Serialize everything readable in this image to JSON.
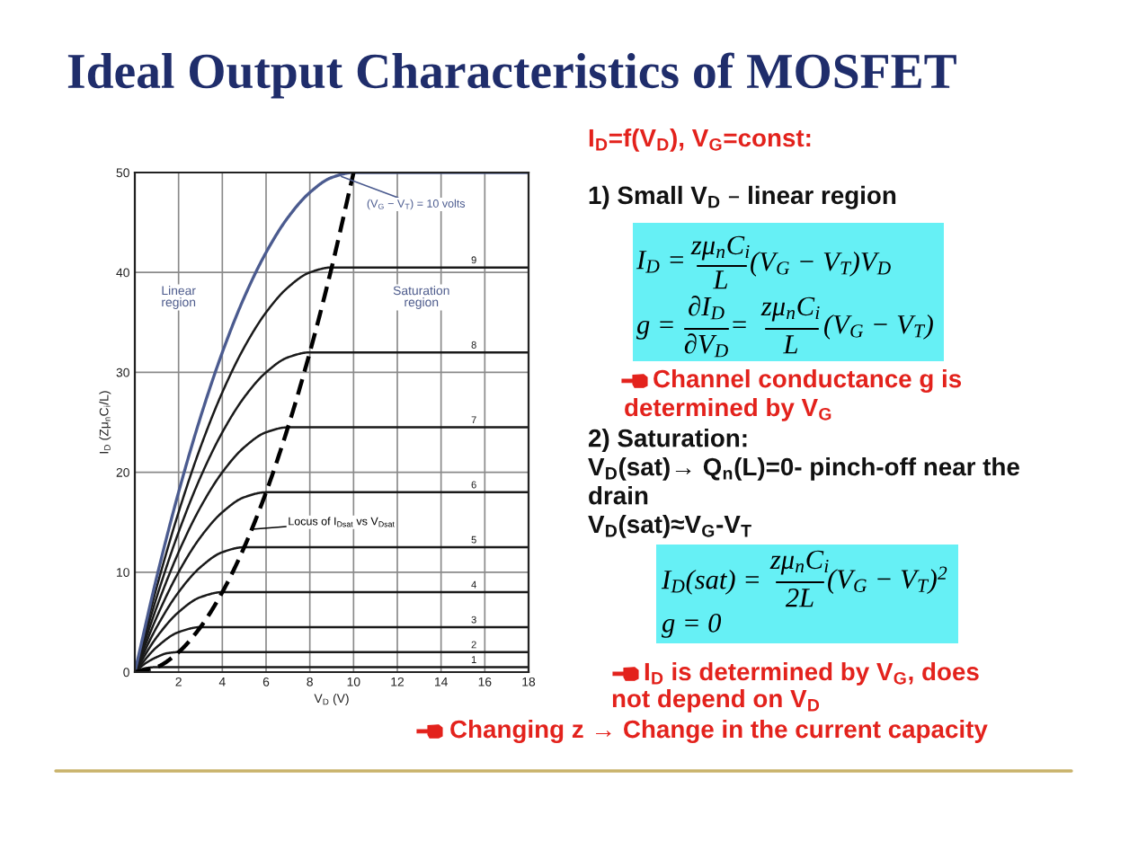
{
  "chart_data": {
    "type": "line",
    "title": "Ideal Output Characteristics of MOSFET",
    "xlabel": "V$_{D}$ (V)",
    "ylabel": "I$_{D}$ (Zμ$_{n}$C$_{i}$/L)",
    "xlim": [
      0,
      18
    ],
    "ylim": [
      0,
      50
    ],
    "xticks": [
      2,
      4,
      6,
      8,
      10,
      12,
      14,
      16,
      18
    ],
    "yticks": [
      0,
      10,
      20,
      30,
      40,
      50
    ],
    "grid": true,
    "series": [
      {
        "name": "1",
        "color": "#1a1a1a",
        "x": [
          0,
          0.5,
          1,
          18
        ],
        "values": [
          0,
          0.4,
          0.5,
          0.5
        ]
      },
      {
        "name": "2",
        "color": "#1a1a1a",
        "x": [
          0,
          0.5,
          1,
          1.5,
          2,
          18
        ],
        "values": [
          0,
          0.9,
          1.5,
          1.9,
          2,
          2
        ]
      },
      {
        "name": "3",
        "color": "#1a1a1a",
        "x": [
          0,
          1,
          2,
          3,
          18
        ],
        "values": [
          0,
          2.5,
          4,
          4.5,
          4.5
        ]
      },
      {
        "name": "4",
        "color": "#1a1a1a",
        "x": [
          0,
          1,
          2,
          3,
          4,
          18
        ],
        "values": [
          0,
          3.5,
          6,
          7.5,
          8,
          8
        ]
      },
      {
        "name": "5",
        "color": "#1a1a1a",
        "x": [
          0,
          1,
          2,
          3,
          4,
          5,
          18
        ],
        "values": [
          0,
          4.5,
          8,
          10.5,
          12,
          12.5,
          12.5
        ]
      },
      {
        "name": "6",
        "color": "#1a1a1a",
        "x": [
          0,
          1,
          2,
          3,
          4,
          5,
          6,
          18
        ],
        "values": [
          0,
          5.5,
          10,
          13.5,
          16,
          17.5,
          18,
          18
        ]
      },
      {
        "name": "7",
        "color": "#1a1a1a",
        "x": [
          0,
          1,
          2,
          3,
          4,
          5,
          6,
          7,
          18
        ],
        "values": [
          0,
          6.5,
          12,
          16.5,
          20,
          22.5,
          24,
          24.5,
          24.5
        ]
      },
      {
        "name": "8",
        "color": "#1a1a1a",
        "x": [
          0,
          1,
          2,
          3,
          4,
          5,
          6,
          7,
          8,
          18
        ],
        "values": [
          0,
          7.5,
          14,
          19.5,
          24,
          27.5,
          30,
          31.5,
          32,
          32
        ]
      },
      {
        "name": "9",
        "color": "#1a1a1a",
        "x": [
          0,
          1,
          2,
          3,
          4,
          5,
          6,
          7,
          8,
          9,
          18
        ],
        "values": [
          0,
          8.5,
          16,
          22.5,
          28,
          32.5,
          36,
          38.5,
          40,
          40.5,
          40.5
        ]
      },
      {
        "name": "(V$_{G}$ − V$_{T}$) = 10 volts",
        "color": "#4b5b8f",
        "x": [
          0,
          1,
          2,
          3,
          4,
          5,
          6,
          7,
          8,
          9,
          10,
          18
        ],
        "values": [
          0,
          9.5,
          18,
          25.5,
          32,
          37.5,
          42,
          45.5,
          48,
          49.5,
          50,
          50
        ]
      },
      {
        "name": "Locus of I$_{Dsat}$ vs V$_{Dsat}$",
        "color": "#000000",
        "line_style": "dashed",
        "x": [
          0,
          1,
          2,
          3,
          4,
          5,
          6,
          7,
          8,
          9,
          10
        ],
        "values": [
          0,
          0.5,
          2,
          4.5,
          8,
          12.5,
          18,
          24.5,
          32,
          40.5,
          50
        ]
      }
    ],
    "annotations": [
      "Linear\nregion",
      "Saturation\nregion",
      "I$_{D}$=f(V$_{D}$), V$_{G}$=const:",
      "1) Small V$_{D}$ – linear region",
      "I$_{D}$ =",
      "zμ$_{n}$C$_{i}$",
      "L",
      "(V$_{G}$ − V$_{T}$)V$_{D}$",
      "g =",
      "∂I$_{D}$",
      "∂V$_{D}$",
      "=",
      "zμ$_{n}$C$_{i}$",
      "L",
      "(V$_{G}$ − V$_{T}$)",
      "Channel conductance g is",
      "determined by V$_{G}$",
      "2) Saturation:",
      "V$_{D}$(sat)→ Q$_{n}$(L)=0- pinch-off near the",
      "drain",
      "V$_{D}$(sat)≈V$_{G}$-V$_{T}$",
      "I$_{D}$(sat) =",
      "zμ$_{n}$C$_{i}$",
      "2L",
      "(V$_{G}$ − V$_{T}$)$^{2}$",
      "g = 0",
      "I$_{D}$ is determined by V$_{G}$, does",
      "not depend on V$_{D}$",
      "Changing z → Change in the current capacity"
    ]
  }
}
